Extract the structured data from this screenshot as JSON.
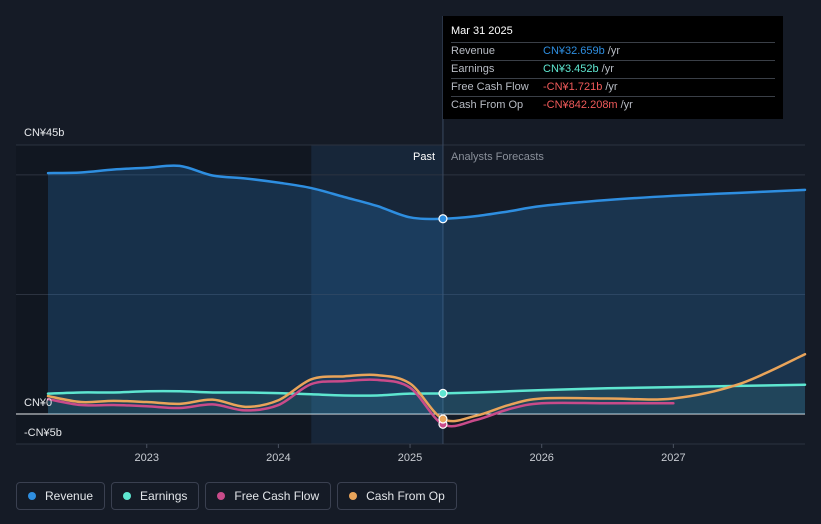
{
  "chart_data": {
    "type": "line",
    "y_unit_labels": {
      "top": "CN¥45b",
      "zero": "CN¥0",
      "bottom": "-CN¥5b"
    },
    "ylim": [
      -5,
      45
    ],
    "xlim": [
      2022.25,
      2028.0
    ],
    "x_ticks": [
      "2023",
      "2024",
      "2025",
      "2026",
      "2027"
    ],
    "x_tick_values": [
      2023,
      2024,
      2025,
      2026,
      2027
    ],
    "past_label": "Past",
    "forecast_label": "Analysts Forecasts",
    "divider_x": 2025.25,
    "series": [
      {
        "name": "Revenue",
        "color": "#2e8ee0",
        "x": [
          2022.25,
          2022.5,
          2022.75,
          2023.0,
          2023.25,
          2023.5,
          2023.75,
          2024.0,
          2024.25,
          2024.5,
          2024.75,
          2025.0,
          2025.25,
          2025.5,
          2025.75,
          2026.0,
          2026.5,
          2027.0,
          2027.5,
          2028.0
        ],
        "values": [
          40.3,
          40.4,
          40.9,
          41.2,
          41.5,
          39.9,
          39.4,
          38.7,
          37.8,
          36.3,
          34.8,
          32.9,
          32.66,
          33.1,
          33.9,
          34.8,
          35.8,
          36.5,
          37.0,
          37.5
        ]
      },
      {
        "name": "Earnings",
        "color": "#5ee6d0",
        "x": [
          2022.25,
          2022.5,
          2022.75,
          2023.0,
          2023.25,
          2023.5,
          2023.75,
          2024.0,
          2024.25,
          2024.5,
          2024.75,
          2025.0,
          2025.25,
          2025.5,
          2025.75,
          2026.0,
          2026.5,
          2027.0,
          2027.5,
          2028.0
        ],
        "values": [
          3.4,
          3.6,
          3.6,
          3.8,
          3.8,
          3.6,
          3.6,
          3.5,
          3.3,
          3.1,
          3.1,
          3.4,
          3.45,
          3.6,
          3.8,
          4.0,
          4.3,
          4.5,
          4.7,
          4.9
        ]
      },
      {
        "name": "Free Cash Flow",
        "color": "#c94b8a",
        "x": [
          2022.25,
          2022.5,
          2022.75,
          2023.0,
          2023.25,
          2023.5,
          2023.75,
          2024.0,
          2024.25,
          2024.5,
          2024.75,
          2025.0,
          2025.25,
          2025.5,
          2025.75,
          2026.0,
          2026.5,
          2027.0
        ],
        "values": [
          2.5,
          1.5,
          1.5,
          1.3,
          1.0,
          1.6,
          0.6,
          1.5,
          5.0,
          5.5,
          5.7,
          4.4,
          -1.72,
          -1.0,
          0.8,
          1.8,
          1.8,
          1.8
        ]
      },
      {
        "name": "Cash From Op",
        "color": "#e9a45a",
        "x": [
          2022.25,
          2022.5,
          2022.75,
          2023.0,
          2023.25,
          2023.5,
          2023.75,
          2024.0,
          2024.25,
          2024.5,
          2024.75,
          2025.0,
          2025.25,
          2025.5,
          2025.75,
          2026.0,
          2026.5,
          2027.0,
          2027.5,
          2028.0
        ],
        "values": [
          3.0,
          2.0,
          2.2,
          2.0,
          1.7,
          2.4,
          1.2,
          2.3,
          5.8,
          6.3,
          6.5,
          5.1,
          -0.84,
          -0.3,
          1.5,
          2.6,
          2.6,
          2.6,
          5.0,
          10.0
        ]
      }
    ],
    "highlight_x": 2025.25,
    "highlight_values": [
      32.66,
      3.45,
      -1.72,
      -0.84
    ]
  },
  "tooltip": {
    "date": "Mar 31 2025",
    "rows": [
      {
        "name": "Revenue",
        "value": "CN¥32.659b",
        "unit": "/yr",
        "color": "#2e8ee0"
      },
      {
        "name": "Earnings",
        "value": "CN¥3.452b",
        "unit": "/yr",
        "color": "#5ee6d0"
      },
      {
        "name": "Free Cash Flow",
        "value": "-CN¥1.721b",
        "unit": "/yr",
        "color": "#f05a5a"
      },
      {
        "name": "Cash From Op",
        "value": "-CN¥842.208m",
        "unit": "/yr",
        "color": "#f05a5a"
      }
    ]
  },
  "legend": [
    {
      "label": "Revenue",
      "color": "#2e8ee0"
    },
    {
      "label": "Earnings",
      "color": "#5ee6d0"
    },
    {
      "label": "Free Cash Flow",
      "color": "#c94b8a"
    },
    {
      "label": "Cash From Op",
      "color": "#e9a45a"
    }
  ]
}
